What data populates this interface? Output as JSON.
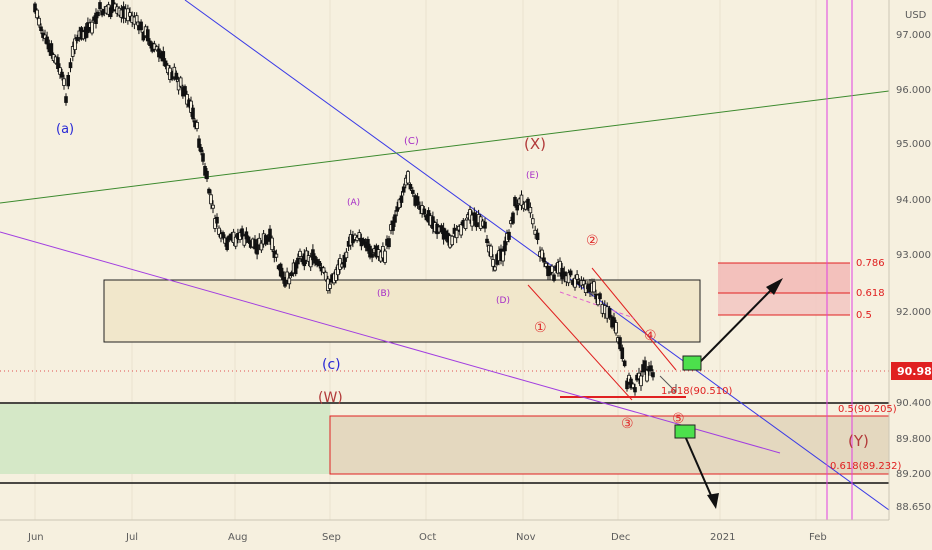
{
  "chart_data": {
    "type": "candlestick",
    "currency_label": "USD",
    "y_ticks": [
      97.0,
      96.0,
      95.0,
      94.0,
      93.0,
      92.0,
      90.4,
      89.8,
      89.2,
      88.65
    ],
    "y_tick_labels": [
      "97.000",
      "96.000",
      "95.000",
      "94.000",
      "93.000",
      "92.000",
      "90.400",
      "89.800",
      "89.200",
      "88.650"
    ],
    "x_tick_labels": [
      "Jun",
      "Jul",
      "Aug",
      "Sep",
      "Oct",
      "Nov",
      "Dec",
      "2021",
      "Feb"
    ],
    "last_price_label": "90.980",
    "last_price": 90.98,
    "wave_labels": [
      {
        "text": "(a)",
        "color": "#2a2ad6"
      },
      {
        "text": "(C)",
        "color": "#a62cc6"
      },
      {
        "text": "(X)",
        "color": "#b23a3a"
      },
      {
        "text": "(E)",
        "color": "#a62cc6"
      },
      {
        "text": "(A)",
        "color": "#a62cc6"
      },
      {
        "text": "(B)",
        "color": "#a62cc6"
      },
      {
        "text": "(D)",
        "color": "#a62cc6"
      },
      {
        "text": "(c)",
        "color": "#2a2ad6"
      },
      {
        "text": "(W)",
        "color": "#b23a3a"
      },
      {
        "text": "(Y)",
        "color": "#b23a3a"
      },
      {
        "text": "①",
        "color": "#e03030"
      },
      {
        "text": "②",
        "color": "#e03030"
      },
      {
        "text": "③",
        "color": "#e03030"
      },
      {
        "text": "④",
        "color": "#e03030"
      },
      {
        "text": "⑤",
        "color": "#e03030"
      }
    ],
    "fib_labels": [
      "0.786",
      "0.618",
      "0.5",
      "0.5(90.205)",
      "0.618(89.232)",
      "1.618(90.510)"
    ],
    "colors": {
      "background": "#f6f0df",
      "candle": "#111111",
      "trend_blue": "#3a3ae6",
      "trend_green": "#3c8a2e",
      "trend_purple": "#a23ee0",
      "fib_red": "#e02020",
      "vline_magenta": "#e040e0"
    }
  }
}
